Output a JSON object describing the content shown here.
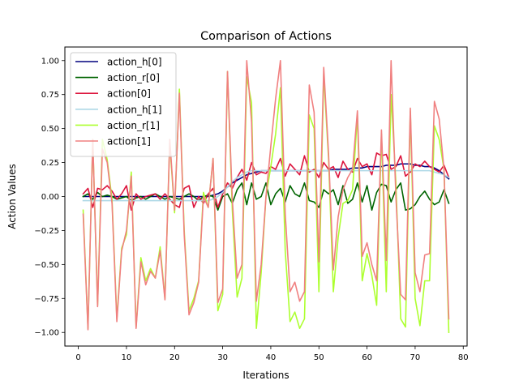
{
  "chart_data": {
    "type": "line",
    "title": "Comparison of Actions",
    "xlabel": "Iterations",
    "ylabel": "Action Values",
    "xlim": [
      -2.8,
      80.8
    ],
    "ylim": [
      -1.1,
      1.1
    ],
    "xticks": [
      0,
      10,
      20,
      30,
      40,
      50,
      60,
      70,
      80
    ],
    "xtick_labels": [
      "0",
      "10",
      "20",
      "30",
      "40",
      "50",
      "60",
      "70",
      "80"
    ],
    "yticks": [
      -1.0,
      -0.75,
      -0.5,
      -0.25,
      0.0,
      0.25,
      0.5,
      0.75,
      1.0
    ],
    "ytick_labels": [
      "−1.00",
      "−0.75",
      "−0.50",
      "−0.25",
      "0.00",
      "0.25",
      "0.50",
      "0.75",
      "1.00"
    ],
    "grid": false,
    "legend_position": "top-left",
    "x": [
      1,
      2,
      3,
      4,
      5,
      6,
      7,
      8,
      9,
      10,
      11,
      12,
      13,
      14,
      15,
      16,
      17,
      18,
      19,
      20,
      21,
      22,
      23,
      24,
      25,
      26,
      27,
      28,
      29,
      30,
      31,
      32,
      33,
      34,
      35,
      36,
      37,
      38,
      39,
      40,
      41,
      42,
      43,
      44,
      45,
      46,
      47,
      48,
      49,
      50,
      51,
      52,
      53,
      54,
      55,
      56,
      57,
      58,
      59,
      60,
      61,
      62,
      63,
      64,
      65,
      66,
      67,
      68,
      69,
      70,
      71,
      72,
      73,
      74,
      75,
      76,
      77
    ],
    "series": [
      {
        "name": "action_h[0]",
        "color": "#00007f",
        "values": [
          0.0,
          0.0,
          0.0,
          0.0,
          0.0,
          0.0,
          0.0,
          0.0,
          0.0,
          0.0,
          0.0,
          0.0,
          0.0,
          0.0,
          0.0,
          0.0,
          0.0,
          0.0,
          0.0,
          0.0,
          0.0,
          0.0,
          0.0,
          0.0,
          0.0,
          0.0,
          0.0,
          0.01,
          0.02,
          0.04,
          0.07,
          0.1,
          0.12,
          0.14,
          0.16,
          0.17,
          0.18,
          0.19,
          0.19,
          0.19,
          0.19,
          0.19,
          0.19,
          0.19,
          0.19,
          0.19,
          0.19,
          0.19,
          0.19,
          0.19,
          0.19,
          0.19,
          0.2,
          0.2,
          0.2,
          0.2,
          0.21,
          0.21,
          0.21,
          0.22,
          0.22,
          0.22,
          0.22,
          0.23,
          0.23,
          0.23,
          0.24,
          0.24,
          0.24,
          0.23,
          0.23,
          0.22,
          0.22,
          0.21,
          0.19,
          0.16,
          0.13
        ]
      },
      {
        "name": "action_r[0]",
        "color": "#006400",
        "values": [
          0.0,
          0.02,
          -0.02,
          0.03,
          0.0,
          0.01,
          0.0,
          -0.02,
          -0.01,
          0.0,
          -0.03,
          -0.01,
          0.0,
          -0.02,
          0.0,
          0.02,
          0.0,
          -0.02,
          0.0,
          -0.01,
          -0.02,
          0.0,
          0.02,
          0.0,
          -0.03,
          0.0,
          0.01,
          0.0,
          -0.1,
          0.0,
          0.02,
          -0.05,
          0.05,
          0.1,
          -0.06,
          0.1,
          -0.02,
          0.0,
          0.1,
          -0.06,
          0.02,
          0.06,
          -0.04,
          0.08,
          0.02,
          0.0,
          0.1,
          -0.03,
          -0.04,
          -0.08,
          0.05,
          0.02,
          0.05,
          -0.06,
          0.08,
          -0.05,
          -0.02,
          0.1,
          -0.04,
          0.08,
          -0.1,
          0.03,
          0.09,
          0.08,
          -0.04,
          0.05,
          0.1,
          -0.1,
          -0.09,
          -0.06,
          0.0,
          0.04,
          -0.02,
          -0.06,
          -0.04,
          0.05,
          -0.05
        ]
      },
      {
        "name": "action[0]",
        "color": "#dc143c",
        "values": [
          0.02,
          0.06,
          -0.08,
          0.06,
          0.05,
          0.08,
          0.04,
          -0.02,
          0.02,
          0.08,
          -0.1,
          0.02,
          -0.02,
          0.0,
          0.01,
          0.02,
          -0.02,
          0.02,
          -0.02,
          -0.06,
          -0.08,
          0.06,
          0.08,
          -0.08,
          0.0,
          -0.05,
          0.02,
          0.06,
          -0.08,
          0.02,
          0.1,
          0.06,
          0.14,
          0.2,
          0.12,
          0.25,
          0.16,
          0.18,
          0.17,
          0.22,
          0.2,
          0.28,
          0.15,
          0.24,
          0.2,
          0.16,
          0.3,
          0.18,
          0.2,
          0.14,
          0.25,
          0.2,
          0.22,
          0.14,
          0.26,
          0.2,
          0.18,
          0.28,
          0.22,
          0.24,
          0.16,
          0.32,
          0.3,
          0.31,
          0.2,
          0.22,
          0.3,
          0.15,
          0.18,
          0.24,
          0.22,
          0.26,
          0.22,
          0.2,
          0.18,
          0.23,
          0.14
        ]
      },
      {
        "name": "action_h[1]",
        "color": "#add8e6",
        "values": [
          -0.03,
          -0.03,
          -0.03,
          -0.03,
          -0.03,
          -0.03,
          -0.03,
          -0.03,
          -0.03,
          -0.03,
          -0.03,
          -0.03,
          -0.03,
          -0.03,
          -0.03,
          -0.03,
          -0.03,
          -0.03,
          -0.03,
          -0.03,
          -0.03,
          -0.03,
          -0.03,
          -0.03,
          -0.03,
          -0.03,
          -0.03,
          -0.02,
          0.0,
          0.03,
          0.07,
          0.11,
          0.14,
          0.16,
          0.18,
          0.19,
          0.19,
          0.19,
          0.19,
          0.19,
          0.19,
          0.19,
          0.19,
          0.19,
          0.19,
          0.19,
          0.19,
          0.19,
          0.19,
          0.19,
          0.19,
          0.19,
          0.19,
          0.19,
          0.19,
          0.19,
          0.19,
          0.19,
          0.19,
          0.19,
          0.19,
          0.19,
          0.19,
          0.19,
          0.19,
          0.19,
          0.19,
          0.19,
          0.19,
          0.19,
          0.19,
          0.19,
          0.19,
          0.18,
          0.17,
          0.16,
          0.14
        ]
      },
      {
        "name": "action_r[1]",
        "color": "#adff2f",
        "values": [
          -0.1,
          -0.97,
          0.42,
          -0.8,
          0.42,
          0.27,
          -0.02,
          -0.9,
          -0.38,
          -0.28,
          0.18,
          -0.96,
          -0.45,
          -0.62,
          -0.53,
          -0.6,
          -0.37,
          -0.75,
          0.4,
          -0.12,
          0.79,
          -0.25,
          -0.84,
          -0.75,
          -0.62,
          0.03,
          -0.08,
          0.28,
          -0.84,
          -0.72,
          0.92,
          -0.1,
          -0.74,
          -0.6,
          0.88,
          0.69,
          -0.97,
          -0.56,
          0.0,
          0.22,
          0.46,
          0.8,
          -0.4,
          -0.92,
          -0.85,
          -0.97,
          -0.9,
          0.6,
          0.5,
          -0.7,
          0.9,
          0.28,
          -0.7,
          -0.3,
          -0.05,
          -0.03,
          0.05,
          0.6,
          -0.62,
          -0.42,
          -0.58,
          -0.8,
          0.46,
          -0.7,
          0.75,
          0.1,
          -0.9,
          -0.96,
          0.63,
          -0.75,
          -0.95,
          -0.62,
          -0.62,
          0.52,
          0.42,
          0.2,
          -1.0
        ]
      },
      {
        "name": "action[1]",
        "color": "#f08080",
        "values": [
          -0.13,
          -0.98,
          0.42,
          -0.81,
          0.35,
          0.25,
          -0.05,
          -0.92,
          -0.4,
          -0.25,
          0.15,
          -0.97,
          -0.48,
          -0.65,
          -0.55,
          -0.6,
          -0.4,
          -0.76,
          0.42,
          -0.1,
          0.76,
          -0.28,
          -0.87,
          -0.78,
          -0.63,
          0.0,
          -0.08,
          0.28,
          -0.78,
          -0.68,
          0.92,
          -0.02,
          -0.6,
          -0.5,
          1.0,
          0.55,
          -0.77,
          -0.5,
          0.0,
          0.37,
          0.72,
          1.0,
          -0.13,
          -0.7,
          -0.63,
          -0.77,
          -0.7,
          0.82,
          0.62,
          -0.48,
          0.95,
          0.32,
          -0.54,
          -0.15,
          0.05,
          0.14,
          0.2,
          0.63,
          -0.44,
          -0.34,
          -0.5,
          -0.62,
          0.49,
          -0.47,
          1.0,
          0.0,
          -0.72,
          -0.76,
          0.65,
          -0.56,
          -0.7,
          -0.43,
          -0.42,
          0.7,
          0.57,
          0.2,
          -0.9
        ]
      }
    ]
  }
}
